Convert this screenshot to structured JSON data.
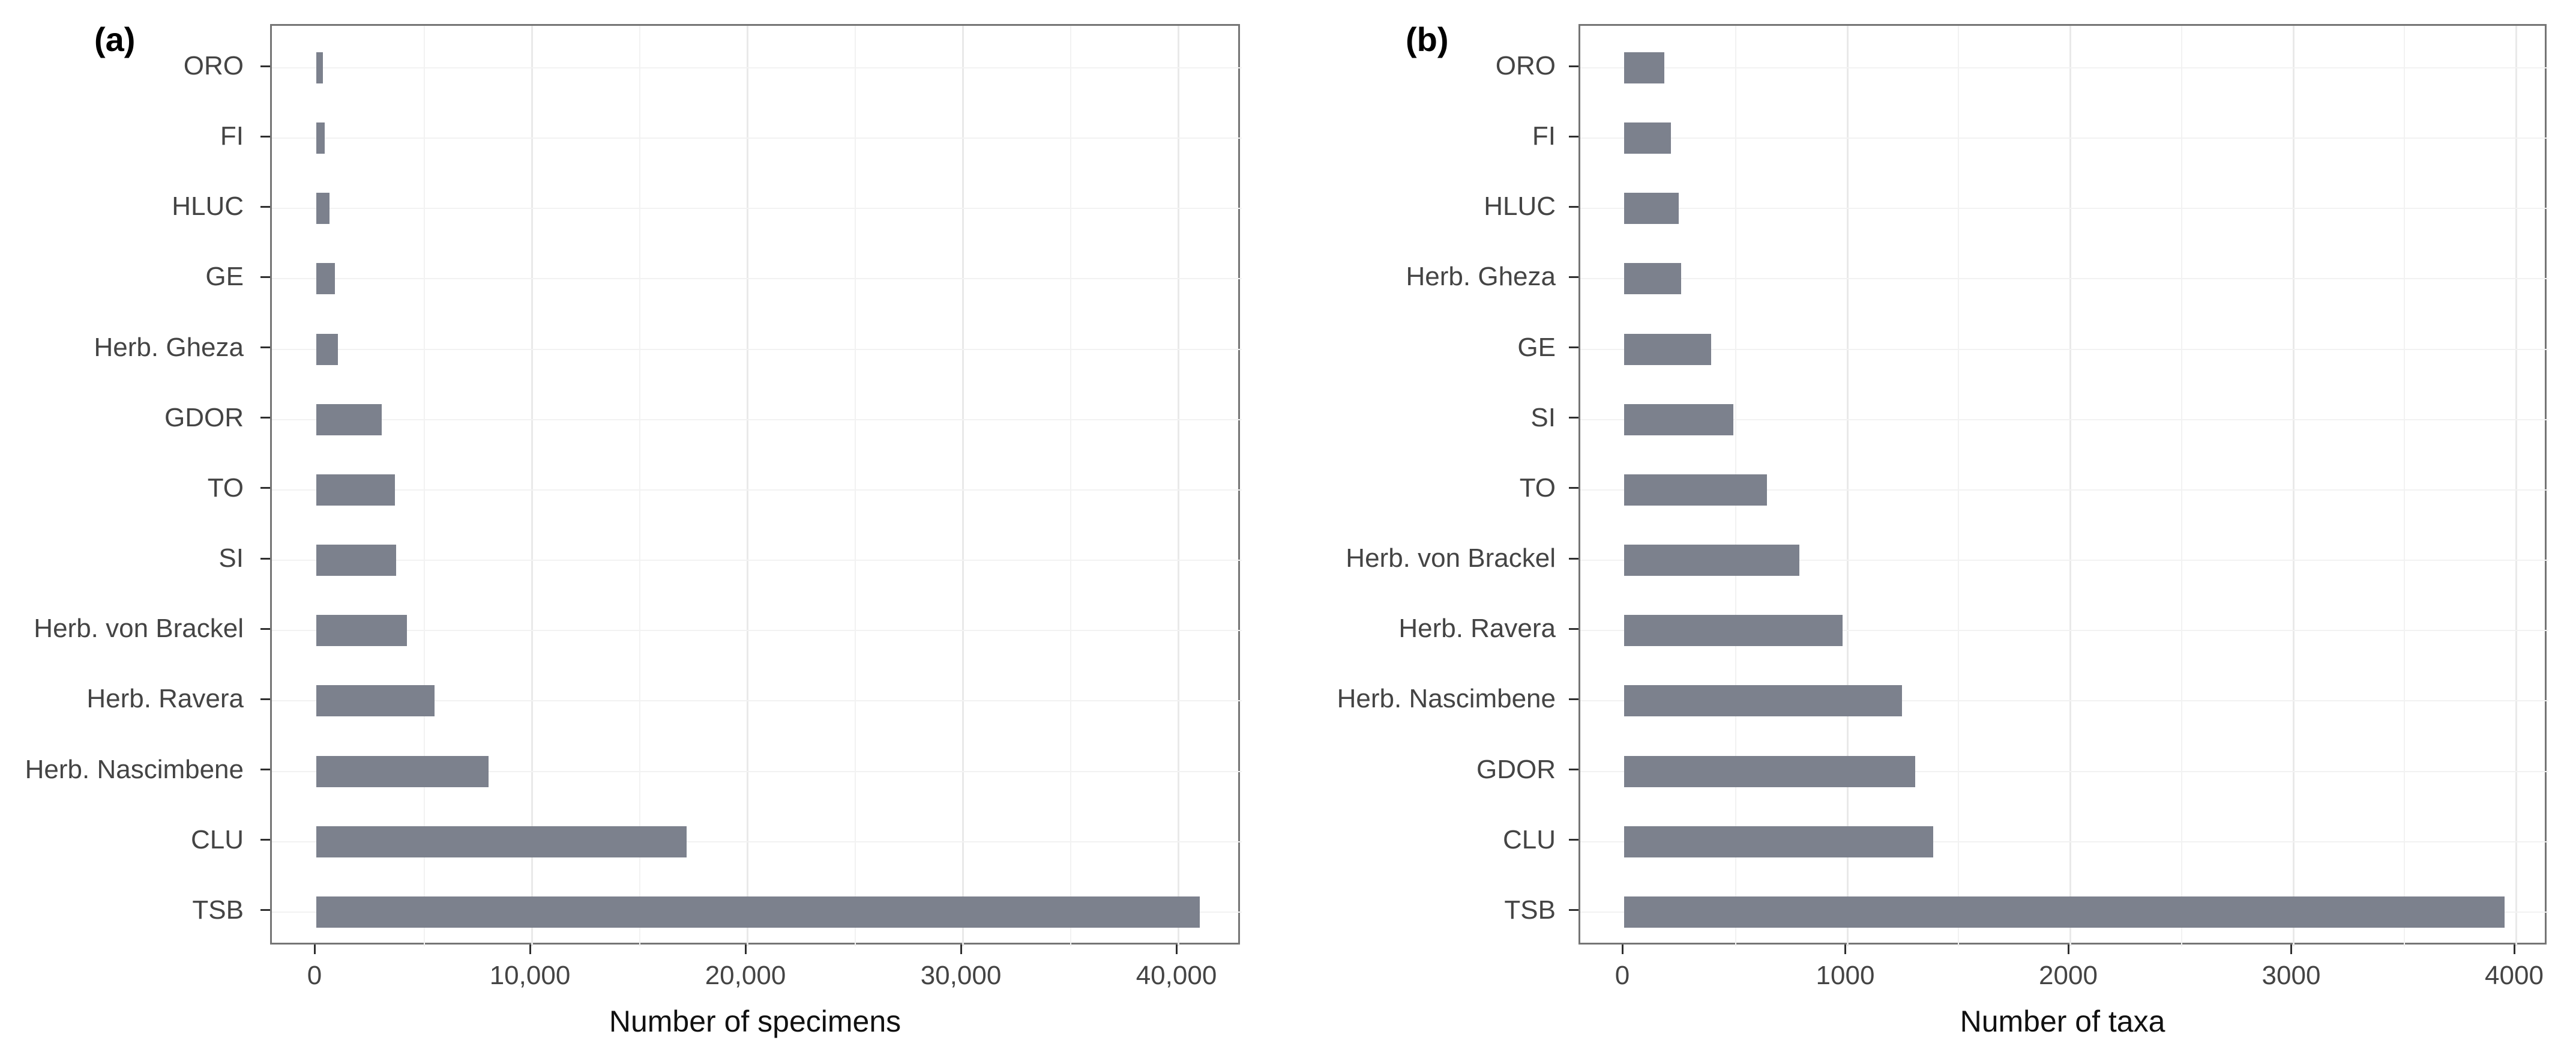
{
  "colors": {
    "bar": "#7c818d",
    "panel_border": "#757575",
    "grid_major": "#e9e9e9",
    "grid_minor": "#f2f2f2",
    "tick_mark": "#2f2f2f",
    "axis_text": "#444444",
    "axis_title": "#111111",
    "panel_tag": "#000000",
    "background": "#ffffff"
  },
  "chart_data": [
    {
      "type": "bar",
      "orientation": "horizontal",
      "panel_tag": "(a)",
      "xlabel": "Number of specimens",
      "ylabel": "",
      "legend": "none",
      "grid": true,
      "categories": [
        "ORO",
        "FI",
        "HLUC",
        "GE",
        "Herb. Gheza",
        "GDOR",
        "TO",
        "SI",
        "Herb. von Brackel",
        "Herb. Ravera",
        "Herb. Nascimbene",
        "CLU",
        "TSB"
      ],
      "values": [
        300,
        400,
        600,
        850,
        1000,
        3050,
        3650,
        3700,
        4200,
        5500,
        8000,
        17200,
        41000
      ],
      "xticks": {
        "values": [
          0,
          10000,
          20000,
          30000,
          40000
        ],
        "labels": [
          "0",
          "10,000",
          "20,000",
          "30,000",
          "40,000"
        ]
      },
      "minor_grid_step": 5000,
      "xlim": [
        0,
        43000
      ]
    },
    {
      "type": "bar",
      "orientation": "horizontal",
      "panel_tag": "(b)",
      "xlabel": "Number of taxa",
      "ylabel": "",
      "legend": "none",
      "grid": true,
      "categories": [
        "ORO",
        "FI",
        "HLUC",
        "Herb. Gheza",
        "GE",
        "SI",
        "TO",
        "Herb. von Brackel",
        "Herb. Ravera",
        "Herb. Nascimbene",
        "GDOR",
        "CLU",
        "TSB"
      ],
      "values": [
        180,
        210,
        245,
        255,
        390,
        490,
        640,
        785,
        980,
        1245,
        1305,
        1385,
        3950
      ],
      "xticks": {
        "values": [
          0,
          1000,
          2000,
          3000,
          4000
        ],
        "labels": [
          "0",
          "1000",
          "2000",
          "3000",
          "4000"
        ]
      },
      "minor_grid_step": 500,
      "xlim": [
        0,
        4150
      ]
    }
  ]
}
